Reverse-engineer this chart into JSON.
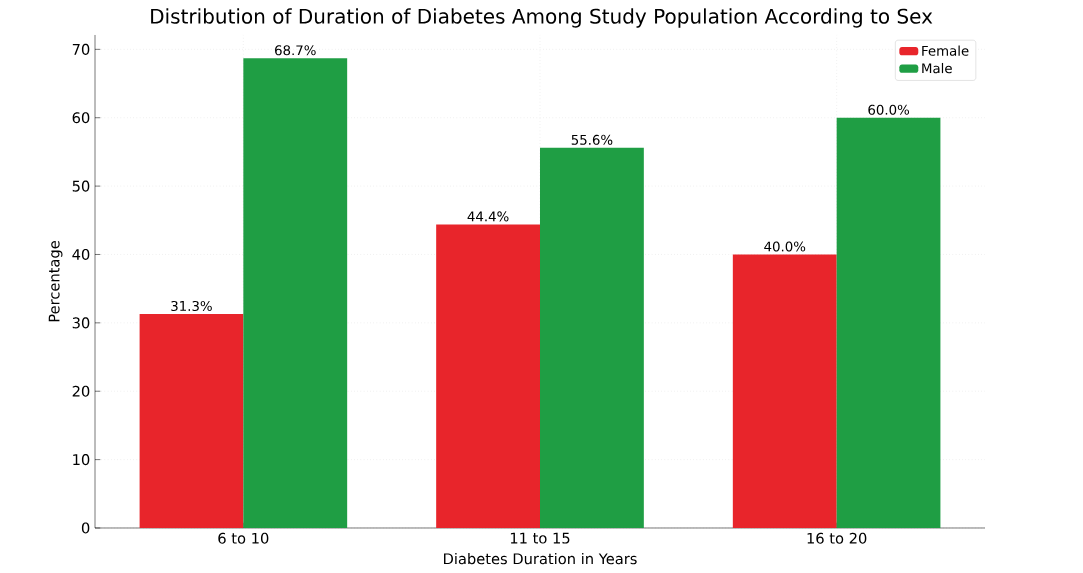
{
  "chart_data": {
    "type": "bar",
    "title": "Distribution of Duration of Diabetes Among Study Population According to Sex",
    "xlabel": "Diabetes Duration in Years",
    "ylabel": "Percentage",
    "categories": [
      "6 to 10",
      "11 to 15",
      "16 to 20"
    ],
    "series": [
      {
        "name": "Female",
        "color": "#e8252b",
        "values": [
          31.3,
          44.4,
          40.0
        ],
        "value_labels": [
          "31.3%",
          "44.4%",
          "40.0%"
        ]
      },
      {
        "name": "Male",
        "color": "#1f9e44",
        "values": [
          68.7,
          55.6,
          60.0
        ],
        "value_labels": [
          "68.7%",
          "55.6%",
          "60.0%"
        ]
      }
    ],
    "ylim": [
      0,
      72.1
    ],
    "yticks": [
      0,
      10,
      20,
      30,
      40,
      50,
      60,
      70
    ],
    "grid": true,
    "legend": "top right"
  }
}
